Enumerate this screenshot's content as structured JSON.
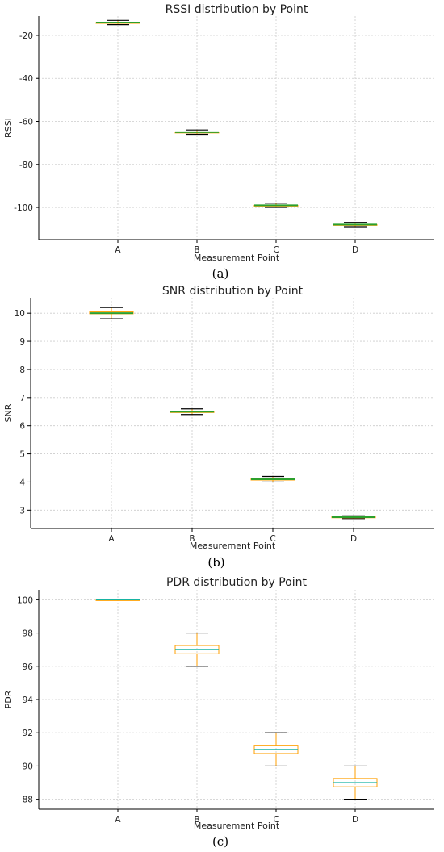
{
  "colors": {
    "median": "#2ca02c",
    "box": "#ff9f00",
    "median_pdr": "#17b3a3",
    "whisker": "#000000",
    "grid": "#cccccc"
  },
  "chart_data": [
    {
      "type": "box",
      "title": "RSSI distribution by Point",
      "xlabel": "Measurement Point",
      "ylabel": "RSSI",
      "caption": "(a)",
      "categories": [
        "A",
        "B",
        "C",
        "D"
      ],
      "ylim": [
        -115,
        -11
      ],
      "yticks": [
        -20,
        -40,
        -60,
        -80,
        -100
      ],
      "grid": true,
      "boxes": [
        {
          "label": "A",
          "min": -15,
          "q1": -14,
          "median": -14,
          "q3": -14,
          "max": -13
        },
        {
          "label": "B",
          "min": -66,
          "q1": -65,
          "median": -65,
          "q3": -65,
          "max": -64
        },
        {
          "label": "C",
          "min": -100,
          "q1": -99,
          "median": -99,
          "q3": -99,
          "max": -98
        },
        {
          "label": "D",
          "min": -109,
          "q1": -108,
          "median": -108,
          "q3": -108,
          "max": -107
        }
      ]
    },
    {
      "type": "box",
      "title": "SNR distribution by Point",
      "xlabel": "Measurement Point",
      "ylabel": "SNR",
      "caption": "(b)",
      "categories": [
        "A",
        "B",
        "C",
        "D"
      ],
      "ylim": [
        2.35,
        10.55
      ],
      "yticks": [
        3,
        4,
        5,
        6,
        7,
        8,
        9,
        10
      ],
      "grid": true,
      "boxes": [
        {
          "label": "A",
          "min": 9.8,
          "q1": 9.98,
          "median": 10.0,
          "q3": 10.05,
          "max": 10.2
        },
        {
          "label": "B",
          "min": 6.4,
          "q1": 6.47,
          "median": 6.5,
          "q3": 6.52,
          "max": 6.6
        },
        {
          "label": "C",
          "min": 4.0,
          "q1": 4.07,
          "median": 4.1,
          "q3": 4.12,
          "max": 4.2
        },
        {
          "label": "D",
          "min": 2.7,
          "q1": 2.73,
          "median": 2.75,
          "q3": 2.77,
          "max": 2.8
        }
      ]
    },
    {
      "type": "box",
      "title": "PDR distribution by Point",
      "xlabel": "Measurement Point",
      "ylabel": "PDR",
      "caption": "(c)",
      "categories": [
        "A",
        "B",
        "C",
        "D"
      ],
      "ylim": [
        87.4,
        100.6
      ],
      "yticks": [
        88,
        90,
        92,
        94,
        96,
        98,
        100
      ],
      "grid": true,
      "boxes": [
        {
          "label": "A",
          "min": 100,
          "q1": 100,
          "median": 100,
          "q3": 100,
          "max": 100
        },
        {
          "label": "B",
          "min": 96,
          "q1": 96.75,
          "median": 97,
          "q3": 97.25,
          "max": 98
        },
        {
          "label": "C",
          "min": 90,
          "q1": 90.75,
          "median": 91,
          "q3": 91.25,
          "max": 92
        },
        {
          "label": "D",
          "min": 88,
          "q1": 88.75,
          "median": 89,
          "q3": 89.25,
          "max": 90
        }
      ]
    }
  ]
}
